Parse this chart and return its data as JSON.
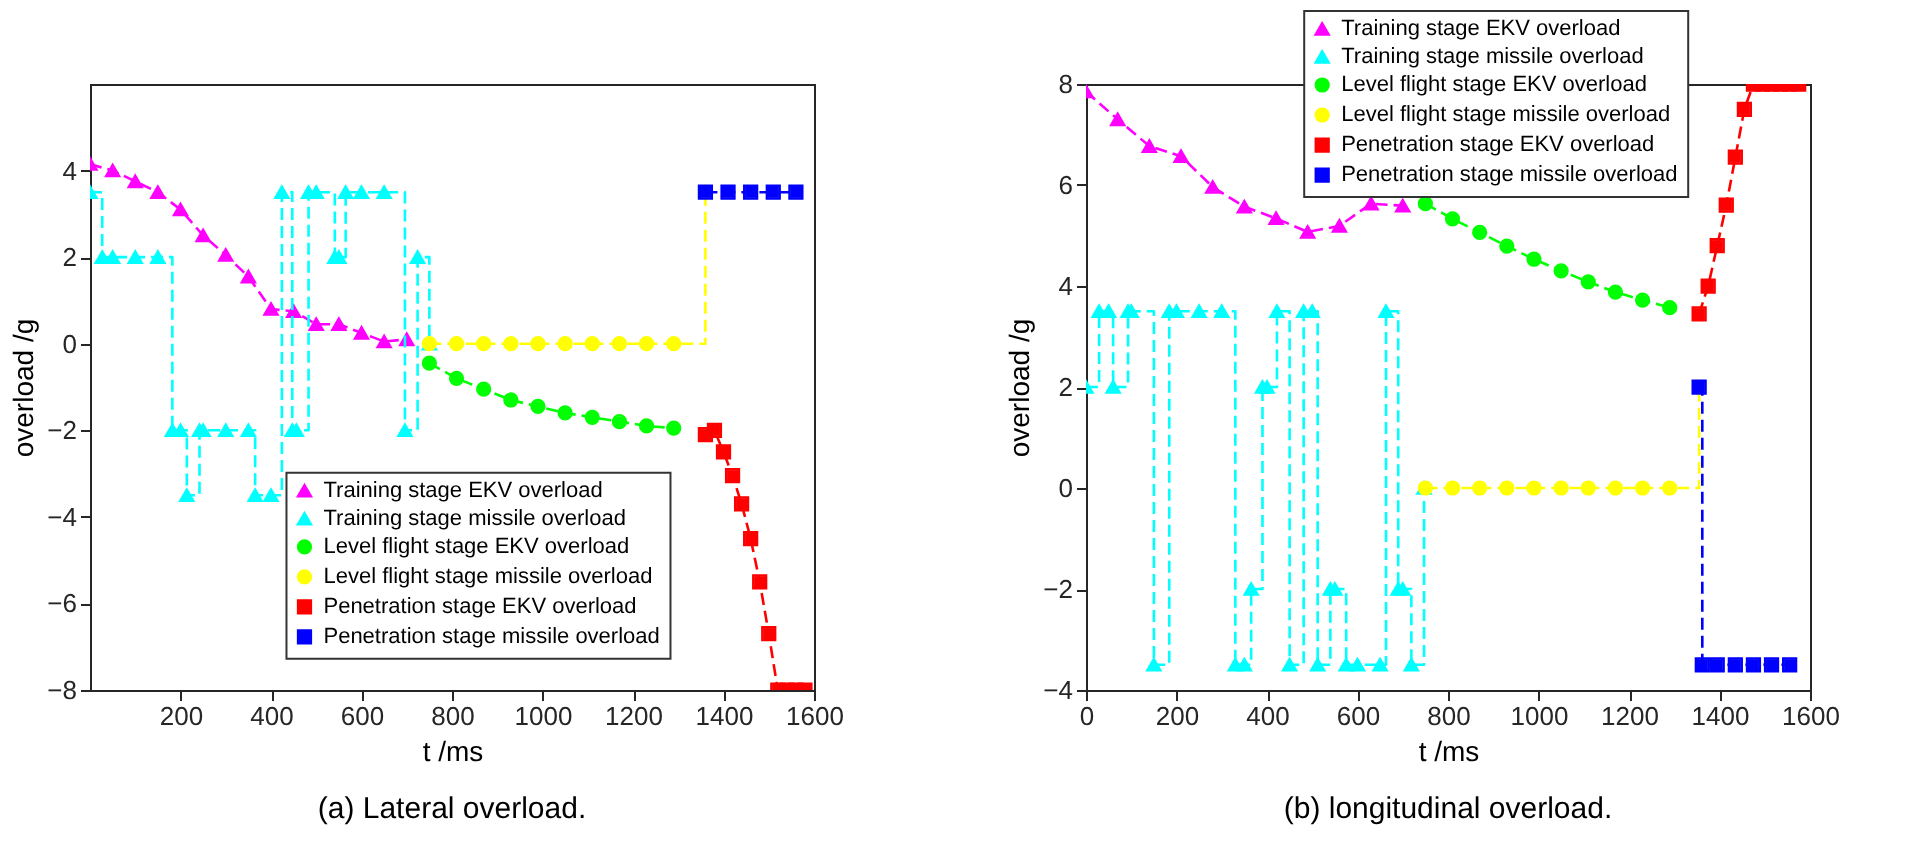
{
  "chart_data": [
    {
      "type": "line",
      "title": "(a) Lateral overload.",
      "xlabel": "t /ms",
      "ylabel": "overload /g",
      "xlim": [
        0,
        1600
      ],
      "xticks": [
        200,
        400,
        600,
        800,
        1000,
        1200,
        1400,
        1600
      ],
      "ylim": [
        -8,
        6
      ],
      "yticks": [
        -8,
        -6,
        -4,
        -2,
        0,
        2,
        4
      ],
      "legend": "bottom right",
      "line_style": "dashed",
      "series": [
        {
          "name": "Training stage EKV overload",
          "color": "#ff00ff",
          "type": "line",
          "marker": "triangle",
          "x": [
            0,
            50,
            100,
            150,
            200,
            250,
            300,
            350,
            400,
            450,
            500,
            550,
            600,
            650,
            700
          ],
          "values": [
            4.15,
            4.0,
            3.75,
            3.5,
            3.1,
            2.5,
            2.05,
            1.55,
            0.8,
            0.75,
            0.45,
            0.45,
            0.25,
            0.05,
            0.1
          ]
        },
        {
          "name": "Training stage missile overload",
          "color": "#00ffff",
          "type": "step",
          "marker": "triangle",
          "x": [
            0,
            27,
            50,
            100,
            150,
            182,
            200,
            214,
            242,
            250,
            300,
            350,
            365,
            400,
            424,
            447,
            456,
            483,
            500,
            541,
            550,
            565,
            600,
            650,
            696,
            724,
            750
          ],
          "values": [
            3.5,
            2,
            2,
            2,
            2,
            -2,
            -2,
            -3.5,
            -2,
            -2,
            -2,
            -2,
            -3.5,
            -3.5,
            3.5,
            -2,
            -2,
            3.5,
            3.5,
            2,
            2,
            3.5,
            3.5,
            3.5,
            -2,
            2,
            0
          ]
        },
        {
          "name": "Level flight stage EKV overload",
          "color": "#00ff00",
          "type": "line",
          "marker": "circle",
          "x": [
            750,
            810,
            870,
            930,
            990,
            1050,
            1110,
            1170,
            1230,
            1290
          ],
          "values": [
            -0.45,
            -0.8,
            -1.05,
            -1.3,
            -1.45,
            -1.6,
            -1.7,
            -1.8,
            -1.9,
            -1.95
          ]
        },
        {
          "name": "Level flight stage missile overload",
          "color": "#ffff00",
          "type": "step",
          "marker": "circle",
          "x": [
            750,
            810,
            870,
            930,
            990,
            1050,
            1110,
            1170,
            1230,
            1290,
            1360
          ],
          "values": [
            0,
            0,
            0,
            0,
            0,
            0,
            0,
            0,
            0,
            0,
            3.5
          ]
        },
        {
          "name": "Penetration stage EKV overload",
          "color": "#ff0000",
          "type": "line",
          "marker": "square",
          "x": [
            1360,
            1380,
            1400,
            1420,
            1440,
            1460,
            1480,
            1500,
            1520,
            1540,
            1560,
            1580
          ],
          "values": [
            -2.1,
            -2.0,
            -2.5,
            -3.05,
            -3.7,
            -4.5,
            -5.5,
            -6.7,
            -8,
            -8,
            -8,
            -8
          ]
        },
        {
          "name": "Penetration stage missile overload",
          "color": "#0000ff",
          "type": "step",
          "marker": "square",
          "x": [
            1360,
            1410,
            1460,
            1510,
            1560
          ],
          "values": [
            3.5,
            3.5,
            3.5,
            3.5,
            3.5
          ]
        }
      ]
    },
    {
      "type": "line",
      "title": "(b) longitudinal overload.",
      "xlabel": "t /ms",
      "ylabel": "overload /g",
      "xlim": [
        0,
        1600
      ],
      "xticks": [
        0,
        200,
        400,
        600,
        800,
        1000,
        1200,
        1400,
        1600
      ],
      "ylim": [
        -4,
        8
      ],
      "yticks": [
        -4,
        -2,
        0,
        2,
        4,
        6,
        8
      ],
      "legend": "top right",
      "line_style": "dashed",
      "series": [
        {
          "name": "Training stage EKV overload",
          "color": "#ff00ff",
          "type": "line",
          "marker": "triangle",
          "x": [
            0,
            70,
            140,
            210,
            280,
            350,
            420,
            490,
            560,
            630,
            700
          ],
          "values": [
            7.85,
            7.3,
            6.77,
            6.57,
            5.96,
            5.57,
            5.34,
            5.07,
            5.19,
            5.63,
            5.59
          ]
        },
        {
          "name": "Training stage missile overload",
          "color": "#00ffff",
          "type": "step",
          "marker": "triangle",
          "x": [
            0,
            29,
            50,
            60,
            93,
            100,
            150,
            184,
            200,
            250,
            300,
            330,
            350,
            365,
            390,
            400,
            422,
            450,
            481,
            500,
            512,
            540,
            550,
            575,
            600,
            650,
            663,
            690,
            700,
            719,
            747
          ],
          "values": [
            2,
            3.5,
            3.5,
            2,
            3.5,
            3.5,
            -3.5,
            3.5,
            3.5,
            3.5,
            3.5,
            -3.5,
            -3.5,
            -2,
            2,
            2,
            3.5,
            -3.5,
            3.5,
            3.5,
            -3.5,
            -2,
            -2,
            -3.5,
            -3.5,
            -3.5,
            3.5,
            -2,
            -2,
            -3.5,
            0
          ]
        },
        {
          "name": "Level flight stage EKV overload",
          "color": "#00ff00",
          "type": "line",
          "marker": "circle",
          "x": [
            750,
            810,
            870,
            930,
            990,
            1050,
            1110,
            1170,
            1230,
            1290
          ],
          "values": [
            5.63,
            5.33,
            5.06,
            4.79,
            4.53,
            4.3,
            4.08,
            3.88,
            3.72,
            3.57
          ]
        },
        {
          "name": "Level flight stage missile overload",
          "color": "#ffff00",
          "type": "step",
          "marker": "circle",
          "x": [
            750,
            810,
            870,
            930,
            990,
            1050,
            1110,
            1170,
            1230,
            1290,
            1355
          ],
          "values": [
            0,
            0,
            0,
            0,
            0,
            0,
            0,
            0,
            0,
            0,
            2
          ]
        },
        {
          "name": "Penetration stage EKV overload",
          "color": "#ff0000",
          "type": "line",
          "marker": "square",
          "x": [
            1355,
            1375,
            1395,
            1415,
            1435,
            1455,
            1475,
            1495,
            1515,
            1535,
            1555,
            1575
          ],
          "values": [
            3.45,
            4.0,
            4.8,
            5.6,
            6.55,
            7.5,
            8,
            8,
            8,
            8,
            8,
            8
          ]
        },
        {
          "name": "Penetration stage missile overload",
          "color": "#0000ff",
          "type": "step",
          "marker": "square",
          "x": [
            1355,
            1362,
            1395,
            1435,
            1475,
            1515,
            1555
          ],
          "values": [
            2,
            -3.5,
            -3.5,
            -3.5,
            -3.5,
            -3.5,
            -3.5
          ]
        }
      ]
    }
  ]
}
